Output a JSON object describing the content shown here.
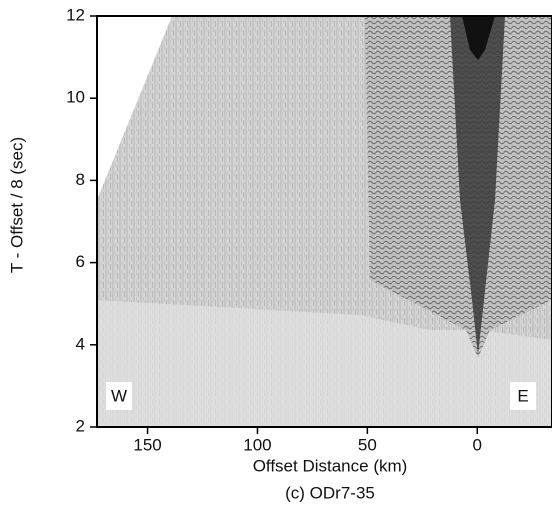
{
  "chart_data": {
    "type": "seismic",
    "title": "(c) ODr7-35",
    "x_label": "Offset Distance (km)",
    "y_label": "T - Offset / 8  (sec)",
    "annotations": [
      "W",
      "E"
    ],
    "xlim": [
      173,
      -34
    ],
    "xticks": [
      150,
      100,
      50,
      0
    ],
    "ylim": [
      2,
      12
    ],
    "yticks": [
      2,
      4,
      6,
      8,
      10,
      12
    ]
  }
}
